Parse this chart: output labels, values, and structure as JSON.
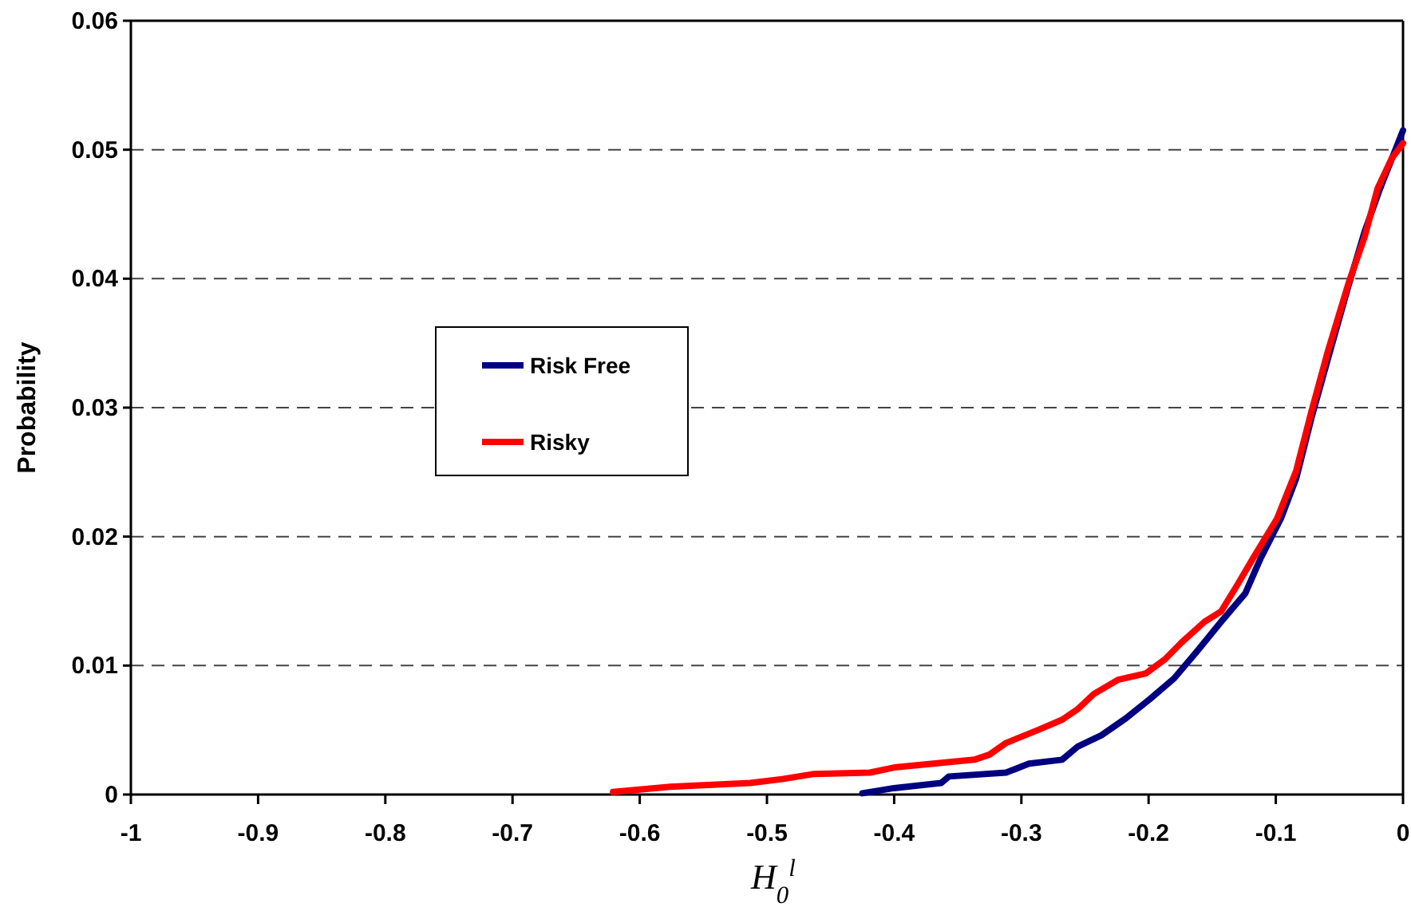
{
  "chart_data": {
    "type": "line",
    "xlabel": "H$_{0}$$^{l}$",
    "ylabel": "Probability",
    "xlim": [
      -1,
      0
    ],
    "xticks": [
      -1,
      -0.9,
      -0.8,
      -0.7,
      -0.6,
      -0.5,
      -0.4,
      -0.3,
      -0.2,
      -0.1,
      0
    ],
    "ylim": [
      0,
      0.06
    ],
    "yticks": [
      0,
      0.01,
      0.02,
      0.03,
      0.04,
      0.05,
      0.06
    ],
    "grid": "y",
    "legend": "left",
    "line_style": "solid",
    "marker": "none",
    "series": [
      {
        "name": "Risk Free",
        "color": "#000080",
        "x": [
          -0.425,
          -0.4,
          -0.363,
          -0.357,
          -0.312,
          -0.294,
          -0.268,
          -0.256,
          -0.237,
          -0.218,
          -0.199,
          -0.18,
          -0.162,
          -0.143,
          -0.124,
          -0.112,
          -0.096,
          -0.084,
          -0.072,
          -0.059,
          -0.043,
          -0.03,
          -0.018,
          0
        ],
        "values": [
          0.0001,
          0.0005,
          0.0009,
          0.0014,
          0.0017,
          0.0024,
          0.0027,
          0.0037,
          0.0046,
          0.0059,
          0.0074,
          0.009,
          0.0111,
          0.0134,
          0.0156,
          0.0183,
          0.0214,
          0.0245,
          0.0292,
          0.0338,
          0.0394,
          0.0437,
          0.047,
          0.0515
        ]
      },
      {
        "name": "Risky",
        "color": "#ff0000",
        "x": [
          -0.621,
          -0.576,
          -0.513,
          -0.488,
          -0.463,
          -0.419,
          -0.4,
          -0.337,
          -0.325,
          -0.312,
          -0.287,
          -0.268,
          -0.256,
          -0.243,
          -0.224,
          -0.202,
          -0.187,
          -0.174,
          -0.156,
          -0.143,
          -0.13,
          -0.118,
          -0.099,
          -0.084,
          -0.072,
          -0.059,
          -0.043,
          -0.03,
          -0.02,
          -0.009,
          0
        ],
        "values": [
          0.0002,
          0.0006,
          0.0009,
          0.0012,
          0.0016,
          0.0017,
          0.0021,
          0.0027,
          0.0031,
          0.004,
          0.005,
          0.0058,
          0.0066,
          0.0078,
          0.0089,
          0.0094,
          0.0105,
          0.0118,
          0.0134,
          0.0142,
          0.0163,
          0.0183,
          0.0214,
          0.0251,
          0.0297,
          0.0344,
          0.0396,
          0.0433,
          0.047,
          0.0493,
          0.0505
        ]
      }
    ]
  }
}
